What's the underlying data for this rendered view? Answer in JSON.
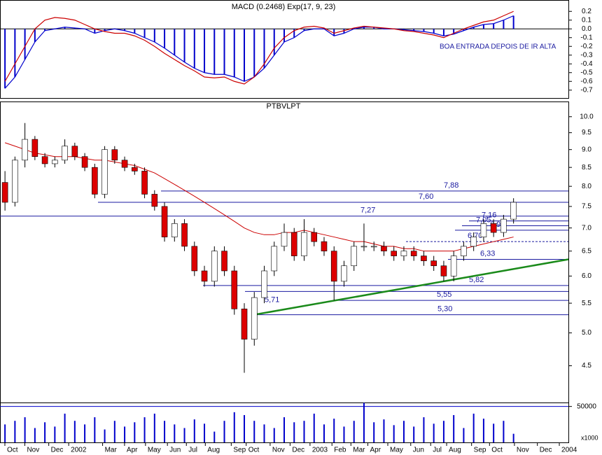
{
  "chart_data": [
    {
      "type": "macd",
      "title": "MACD (0.2468) Exp(17, 9, 23)",
      "annotation": "BOA ENTRADA DEPOIS DE IR ALTA",
      "ylim": [
        -0.79,
        0.33
      ],
      "yticks": [
        0.2,
        0.1,
        {
          "value": 0,
          "label": "0.0"
        },
        -0.1,
        -0.2,
        -0.3,
        -0.4,
        -0.5,
        -0.6,
        -0.7
      ],
      "series": [
        {
          "name": "MACD",
          "color": "#0000cc",
          "values": [
            -0.68,
            -0.55,
            -0.35,
            -0.15,
            -0.02,
            0.0,
            0.02,
            0.01,
            0.0,
            -0.05,
            -0.02,
            0.0,
            -0.02,
            -0.05,
            -0.1,
            -0.15,
            -0.22,
            -0.3,
            -0.38,
            -0.45,
            -0.5,
            -0.52,
            -0.52,
            -0.55,
            -0.6,
            -0.55,
            -0.45,
            -0.3,
            -0.15,
            -0.1,
            -0.02,
            0.0,
            0.0,
            -0.08,
            -0.05,
            0.0,
            0.02,
            0.02,
            0.0,
            0.0,
            -0.01,
            -0.02,
            -0.03,
            -0.05,
            -0.08,
            -0.06,
            -0.02,
            0.02,
            0.05,
            0.06,
            0.1,
            0.15
          ]
        },
        {
          "name": "Signal",
          "color": "#cc0000",
          "values": [
            -0.6,
            -0.4,
            -0.2,
            0.0,
            0.1,
            0.13,
            0.12,
            0.1,
            0.05,
            0.0,
            -0.03,
            -0.05,
            -0.05,
            -0.08,
            -0.13,
            -0.2,
            -0.28,
            -0.35,
            -0.42,
            -0.48,
            -0.55,
            -0.56,
            -0.55,
            -0.6,
            -0.63,
            -0.55,
            -0.4,
            -0.22,
            -0.1,
            -0.02,
            0.02,
            0.03,
            0.01,
            -0.05,
            -0.02,
            0.01,
            0.03,
            0.02,
            0.01,
            0.0,
            -0.02,
            -0.03,
            -0.05,
            -0.07,
            -0.1,
            -0.05,
            0.0,
            0.04,
            0.08,
            0.1,
            0.15,
            0.2
          ]
        }
      ]
    },
    {
      "type": "candlestick",
      "title": "PTBVLPT",
      "log_scale": true,
      "ylim": [
        4.0,
        10.5
      ],
      "yticks": [
        {
          "value": 4.5,
          "label": "4.5"
        },
        {
          "value": 5,
          "label": "5.0"
        },
        {
          "value": 5.5,
          "label": "5.5"
        },
        {
          "value": 6,
          "label": "6.0"
        },
        {
          "value": 6.5,
          "label": "6.5"
        },
        {
          "value": 7,
          "label": "7.0"
        },
        {
          "value": 7.5,
          "label": "7.5"
        },
        {
          "value": 8,
          "label": "8.0"
        },
        {
          "value": 8.5,
          "label": "8.5"
        },
        {
          "value": 9,
          "label": "9.0"
        },
        {
          "value": 9.5,
          "label": "9.5"
        },
        {
          "value": 10,
          "label": "10.0"
        }
      ],
      "up_color": "#ffffff",
      "down_color": "#dd0000",
      "open": [
        8.1,
        7.6,
        8.7,
        9.3,
        8.8,
        8.6,
        8.7,
        9.1,
        8.8,
        8.5,
        7.8,
        9.0,
        8.7,
        8.5,
        8.4,
        7.8,
        7.5,
        6.8,
        7.1,
        6.6,
        6.1,
        5.9,
        6.5,
        6.1,
        5.4,
        4.9,
        5.6,
        6.1,
        6.6,
        6.9,
        6.4,
        6.9,
        6.7,
        6.5,
        5.9,
        6.2,
        6.6,
        6.6,
        6.6,
        6.5,
        6.4,
        6.5,
        6.4,
        6.3,
        6.2,
        6.0,
        6.4,
        6.6,
        6.8,
        7.1,
        6.9,
        7.2
      ],
      "high": [
        8.4,
        8.8,
        9.8,
        9.4,
        8.9,
        8.8,
        9.3,
        9.2,
        8.9,
        8.6,
        9.1,
        9.1,
        8.8,
        8.6,
        8.5,
        7.9,
        7.6,
        7.2,
        7.2,
        6.7,
        6.2,
        6.6,
        6.6,
        6.2,
        5.5,
        5.7,
        6.2,
        6.7,
        7.1,
        7.0,
        7.2,
        7.0,
        6.8,
        6.6,
        6.3,
        6.7,
        7.1,
        6.7,
        6.7,
        6.6,
        6.6,
        6.6,
        6.5,
        6.4,
        6.3,
        6.5,
        6.7,
        6.9,
        7.2,
        7.2,
        7.3,
        7.7
      ],
      "low": [
        7.4,
        7.5,
        8.5,
        8.7,
        8.5,
        8.5,
        8.6,
        8.7,
        8.4,
        7.7,
        7.7,
        8.6,
        8.4,
        8.3,
        7.7,
        7.4,
        6.7,
        6.7,
        6.5,
        6.0,
        5.8,
        5.8,
        6.0,
        5.3,
        4.4,
        4.8,
        5.5,
        6.0,
        6.5,
        6.3,
        6.3,
        6.6,
        6.4,
        5.55,
        5.8,
        6.1,
        6.5,
        6.5,
        6.4,
        6.3,
        6.3,
        6.3,
        6.2,
        6.1,
        5.9,
        5.9,
        6.3,
        6.5,
        6.7,
        6.8,
        6.8,
        7.1
      ],
      "close": [
        7.6,
        8.7,
        9.3,
        8.8,
        8.6,
        8.7,
        9.1,
        8.8,
        8.5,
        7.8,
        9.0,
        8.7,
        8.5,
        8.4,
        7.8,
        7.5,
        6.8,
        7.1,
        6.6,
        6.1,
        5.9,
        6.5,
        6.1,
        5.4,
        4.9,
        5.6,
        6.1,
        6.6,
        6.9,
        6.4,
        6.9,
        6.7,
        6.5,
        5.9,
        6.2,
        6.6,
        6.6,
        6.6,
        6.5,
        6.4,
        6.5,
        6.4,
        6.3,
        6.2,
        6.0,
        6.4,
        6.6,
        6.8,
        7.1,
        6.9,
        7.2,
        7.6
      ],
      "series": [
        {
          "name": "MA",
          "color": "#cc0000",
          "values": [
            9.2,
            9.1,
            9.0,
            8.9,
            8.85,
            8.8,
            8.8,
            8.8,
            8.75,
            8.7,
            8.7,
            8.65,
            8.6,
            8.55,
            8.45,
            8.35,
            8.2,
            8.05,
            7.9,
            7.75,
            7.6,
            7.45,
            7.3,
            7.15,
            7.0,
            6.9,
            6.85,
            6.85,
            6.9,
            6.9,
            6.95,
            6.9,
            6.85,
            6.8,
            6.75,
            6.7,
            6.7,
            6.65,
            6.6,
            6.6,
            6.55,
            6.55,
            6.5,
            6.5,
            6.5,
            6.5,
            6.55,
            6.6,
            6.65,
            6.7,
            6.75,
            6.8
          ]
        }
      ],
      "levels": [
        {
          "value": 7.88,
          "label": "7,88"
        },
        {
          "value": 7.6,
          "label": "7,60"
        },
        {
          "value": 7.27,
          "label": "7,27"
        },
        {
          "value": 7.16,
          "label": "7,16"
        },
        {
          "value": 7.05,
          "label": "7,05"
        },
        {
          "value": 6.95,
          "label": "6,95"
        },
        {
          "value": 6.7,
          "label": "6,70"
        },
        {
          "value": 6.33,
          "label": "6,33"
        },
        {
          "value": 5.82,
          "label": "5,82"
        },
        {
          "value": 5.71,
          "label": "5,71"
        },
        {
          "value": 5.55,
          "label": "5,55"
        },
        {
          "value": 5.3,
          "label": "5,30"
        }
      ],
      "trendline_color": "#1a8a1a"
    },
    {
      "type": "volume",
      "unit_label": "x1000",
      "color": "#0000cc",
      "ylim": [
        0,
        55500
      ],
      "yticks": [
        50000
      ],
      "values": [
        25000,
        30000,
        35000,
        20000,
        28000,
        22000,
        40000,
        30000,
        25000,
        35000,
        18000,
        30000,
        22000,
        28000,
        35000,
        40000,
        30000,
        25000,
        20000,
        32000,
        26000,
        15000,
        30000,
        42000,
        38000,
        30000,
        25000,
        20000,
        35000,
        28000,
        30000,
        40000,
        25000,
        33000,
        22000,
        30000,
        55000,
        28000,
        32000,
        24000,
        30000,
        22000,
        35000,
        26000,
        30000,
        38000,
        20000,
        40000,
        33000,
        26000,
        30000,
        12000
      ],
      "xlim": [
        0,
        57
      ],
      "xticks": [
        {
          "value": 0.7,
          "label": "Oct"
        },
        {
          "value": 2.7,
          "label": "Nov"
        },
        {
          "value": 5.1,
          "label": "Dec"
        },
        {
          "value": 7.1,
          "label": "2002"
        },
        {
          "value": 10.5,
          "label": "Mar"
        },
        {
          "value": 12.7,
          "label": "Apr"
        },
        {
          "value": 14.8,
          "label": "May"
        },
        {
          "value": 17,
          "label": "Jun"
        },
        {
          "value": 18.9,
          "label": "Jul"
        },
        {
          "value": 20.8,
          "label": "Aug"
        },
        {
          "value": 23.4,
          "label": "Sep"
        },
        {
          "value": 24.9,
          "label": "Oct"
        },
        {
          "value": 27.3,
          "label": "Nov"
        },
        {
          "value": 29.3,
          "label": "Dec"
        },
        {
          "value": 31.3,
          "label": "2003"
        },
        {
          "value": 33.5,
          "label": "Feb"
        },
        {
          "value": 35.4,
          "label": "Mar"
        },
        {
          "value": 37.1,
          "label": "Apr"
        },
        {
          "value": 39.1,
          "label": "May"
        },
        {
          "value": 41.4,
          "label": "Jun"
        },
        {
          "value": 43.4,
          "label": "Jul"
        },
        {
          "value": 45,
          "label": "Aug"
        },
        {
          "value": 47.5,
          "label": "Sep"
        },
        {
          "value": 49.3,
          "label": "Oct"
        },
        {
          "value": 51.8,
          "label": "Nov"
        },
        {
          "value": 54.1,
          "label": "Dec"
        },
        {
          "value": 56.3,
          "label": "2004"
        }
      ]
    }
  ]
}
